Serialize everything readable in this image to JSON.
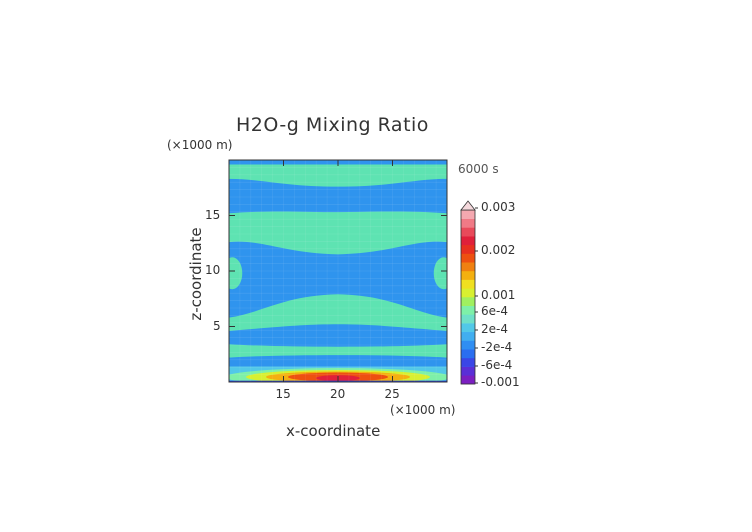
{
  "chart_data": {
    "type": "heatmap",
    "title": "H2O-g Mixing Ratio",
    "xlabel": "x-coordinate",
    "ylabel": "z-coordinate",
    "x_unit": "(×1000 m)",
    "y_unit": "(×1000 m)",
    "time_label": "6000 s",
    "xlim": [
      10,
      30
    ],
    "ylim": [
      0,
      20
    ],
    "x_ticks": [
      "15",
      "20",
      "25"
    ],
    "y_ticks": [
      "5",
      "10",
      "15"
    ],
    "colorbar": {
      "labels": [
        "0.003",
        "0.002",
        "0.001",
        "6e-4",
        "2e-4",
        "-2e-4",
        "-6e-4",
        "-0.001"
      ],
      "colors": [
        "#7b1fc1",
        "#5a2fd6",
        "#3a46e6",
        "#2a6ef0",
        "#2f8ef2",
        "#41aef0",
        "#52c8e8",
        "#6fe0c8",
        "#7ef0a8",
        "#a0f060",
        "#d8f030",
        "#f0e020",
        "#f4b010",
        "#f08010",
        "#ee5010",
        "#e83020",
        "#e0203a",
        "#e84a5a",
        "#f07a86",
        "#f4a8b0"
      ],
      "extend_max": true
    },
    "field_regions": [
      {
        "label": "positive band",
        "z": [
          18.3,
          19.5
        ],
        "x": [
          13.5,
          25.5
        ],
        "level": "2e-4"
      },
      {
        "label": "positive band",
        "z": [
          12.3,
          15.3
        ],
        "x": [
          10,
          30
        ],
        "level": "2e-4"
      },
      {
        "label": "positive band",
        "z": [
          5.2,
          7.2
        ],
        "x": [
          10,
          30
        ],
        "level": "2e-4"
      },
      {
        "label": "positive band",
        "z": [
          2.0,
          3.2
        ],
        "x": [
          10,
          30
        ],
        "level": "2e-4"
      },
      {
        "label": "negative band",
        "z": [
          15.8,
          17.8
        ],
        "x": [
          10,
          30
        ],
        "level": "-2e-4"
      },
      {
        "label": "negative band",
        "z": [
          8.0,
          11.6
        ],
        "x": [
          10,
          30
        ],
        "level": "-2e-4"
      },
      {
        "label": "surface maximum",
        "z": [
          0,
          1.2
        ],
        "x": [
          10,
          30
        ],
        "level": "0.002"
      }
    ]
  }
}
